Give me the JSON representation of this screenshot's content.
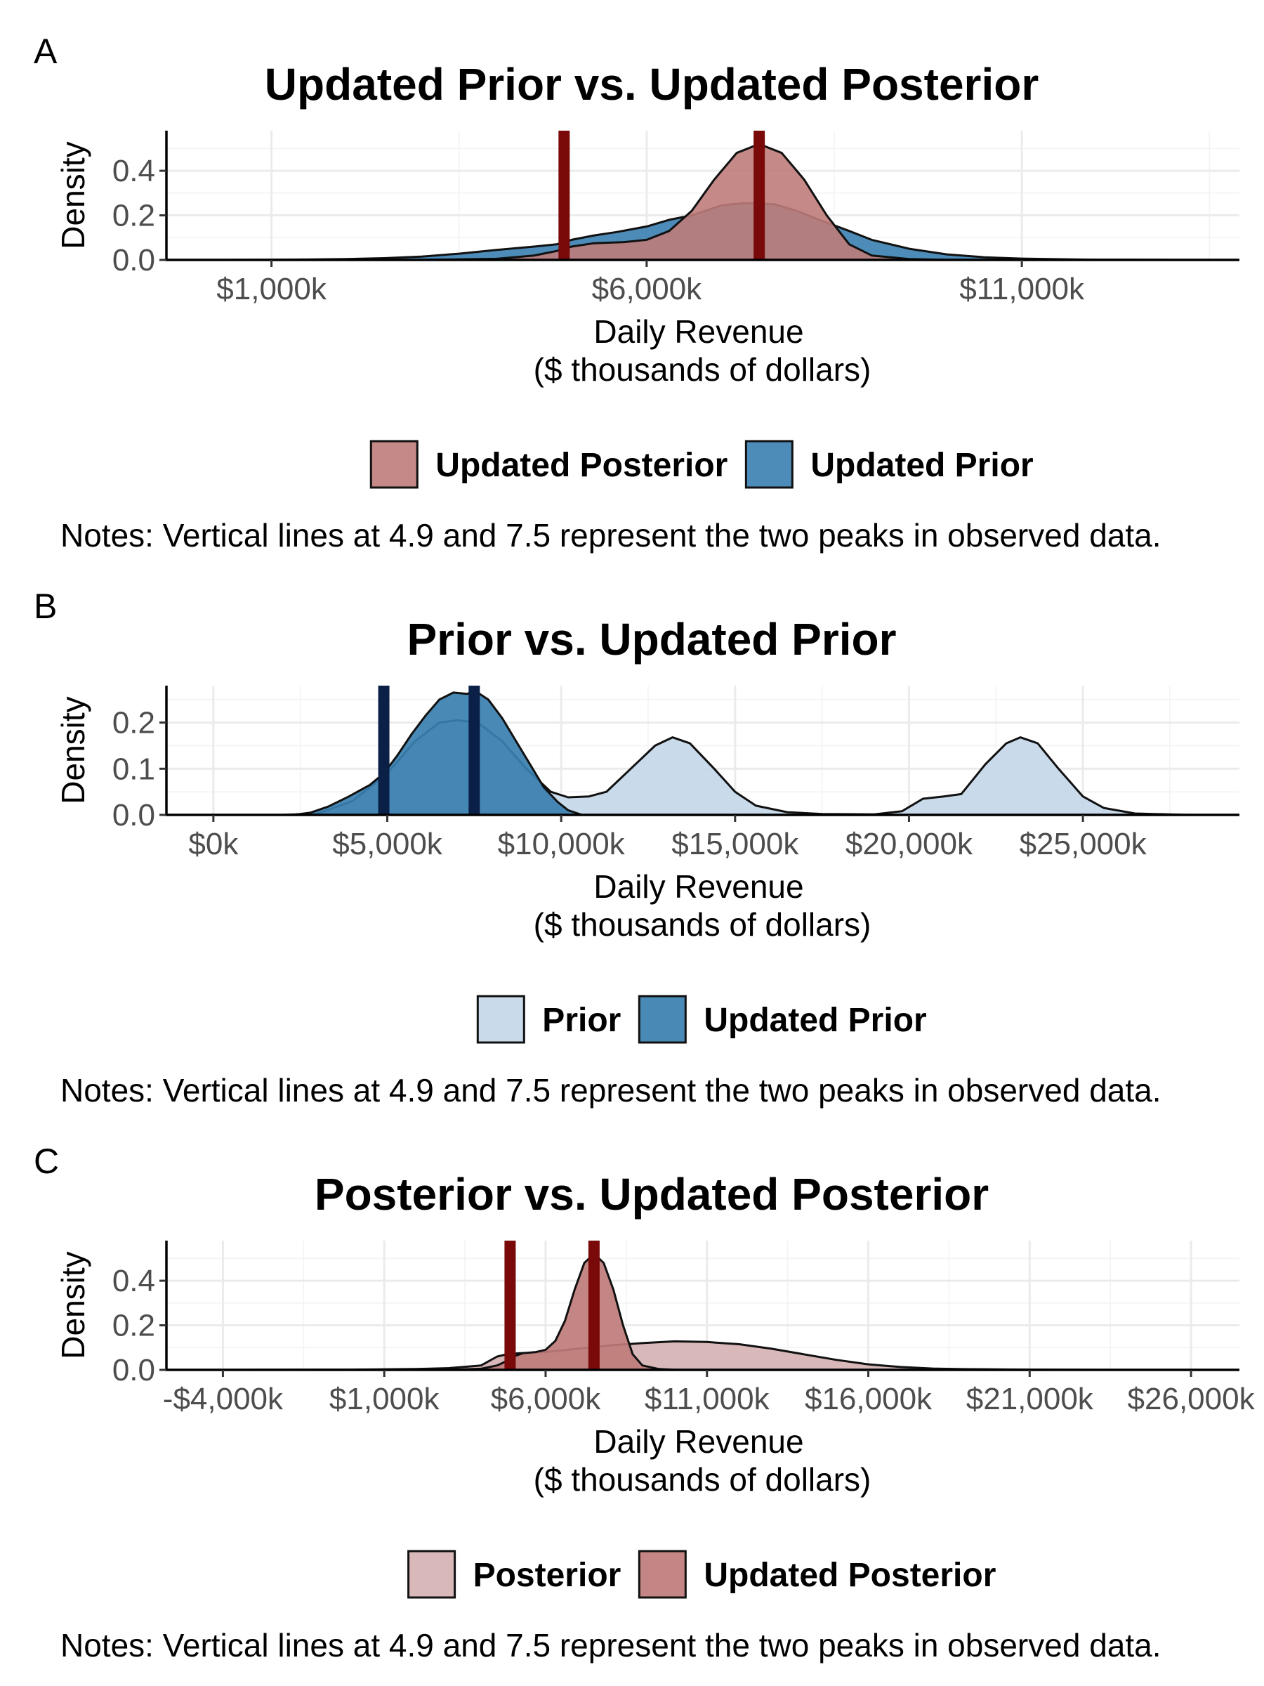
{
  "chart_data": [
    {
      "panel": "A",
      "type": "area",
      "title": "Updated Prior vs. Updated Posterior",
      "xlabel": "Daily Revenue",
      "xlabel2": "($ thousands of dollars)",
      "ylabel": "Density",
      "xlim": [
        -400,
        13900
      ],
      "ylim": [
        0,
        0.58
      ],
      "x_ticks": [
        1000,
        6000,
        11000
      ],
      "x_tick_labels": [
        "$1,000k",
        "$6,000k",
        "$11,000k"
      ],
      "y_ticks": [
        0.0,
        0.2,
        0.4
      ],
      "y_tick_labels": [
        "0.0",
        "0.2",
        "0.4"
      ],
      "grid": true,
      "legend_position": "bottom",
      "vlines": [
        4900,
        7500
      ],
      "vline_color": "#7a0a0a",
      "series": [
        {
          "name": "Updated Prior",
          "color": "#3a7fb0",
          "opacity": 0.9,
          "points": [
            [
              250,
              0
            ],
            [
              1000,
              0.001
            ],
            [
              1500,
              0.002
            ],
            [
              2000,
              0.004
            ],
            [
              2500,
              0.008
            ],
            [
              3000,
              0.015
            ],
            [
              3500,
              0.028
            ],
            [
              4000,
              0.045
            ],
            [
              4500,
              0.06
            ],
            [
              4800,
              0.07
            ],
            [
              5000,
              0.09
            ],
            [
              5300,
              0.11
            ],
            [
              5600,
              0.125
            ],
            [
              6000,
              0.15
            ],
            [
              6300,
              0.18
            ],
            [
              6600,
              0.2
            ],
            [
              7000,
              0.245
            ],
            [
              7300,
              0.255
            ],
            [
              7700,
              0.25
            ],
            [
              8000,
              0.22
            ],
            [
              8300,
              0.18
            ],
            [
              8700,
              0.13
            ],
            [
              9000,
              0.09
            ],
            [
              9500,
              0.05
            ],
            [
              10000,
              0.025
            ],
            [
              10500,
              0.012
            ],
            [
              11000,
              0.006
            ],
            [
              11500,
              0.003
            ],
            [
              12000,
              0.001
            ],
            [
              12500,
              0.0005
            ],
            [
              13100,
              0
            ]
          ]
        },
        {
          "name": "Updated Posterior",
          "color": "#bf7c7a",
          "opacity": 0.9,
          "points": [
            [
              3000,
              0
            ],
            [
              4000,
              0.005
            ],
            [
              4500,
              0.02
            ],
            [
              4800,
              0.04
            ],
            [
              5000,
              0.06
            ],
            [
              5300,
              0.075
            ],
            [
              5700,
              0.08
            ],
            [
              6000,
              0.09
            ],
            [
              6300,
              0.13
            ],
            [
              6600,
              0.22
            ],
            [
              6900,
              0.36
            ],
            [
              7200,
              0.48
            ],
            [
              7500,
              0.52
            ],
            [
              7800,
              0.48
            ],
            [
              8100,
              0.36
            ],
            [
              8400,
              0.2
            ],
            [
              8700,
              0.07
            ],
            [
              9000,
              0.02
            ],
            [
              9500,
              0.004
            ],
            [
              10000,
              0
            ]
          ]
        }
      ],
      "legend": [
        "Updated Posterior",
        "Updated Prior"
      ],
      "note": "Notes: Vertical lines at 4.9 and 7.5 represent the two peaks in observed data."
    },
    {
      "panel": "B",
      "type": "area",
      "title": "Prior vs. Updated Prior",
      "xlabel": "Daily Revenue",
      "xlabel2": "($ thousands of dollars)",
      "ylabel": "Density",
      "xlim": [
        -1350,
        29500
      ],
      "ylim": [
        0,
        0.28
      ],
      "x_ticks": [
        0,
        5000,
        10000,
        15000,
        20000,
        25000
      ],
      "x_tick_labels": [
        "$0k",
        "$5,000k",
        "$10,000k",
        "$15,000k",
        "$20,000k",
        "$25,000k"
      ],
      "y_ticks": [
        0.0,
        0.1,
        0.2
      ],
      "y_tick_labels": [
        "0.0",
        "0.1",
        "0.2"
      ],
      "grid": true,
      "legend_position": "bottom",
      "vlines": [
        4900,
        7500
      ],
      "vline_color": "#0b2046",
      "series": [
        {
          "name": "Prior",
          "color": "#c6d9ea",
          "opacity": 0.95,
          "points": [
            [
              600,
              0
            ],
            [
              2000,
              0
            ],
            [
              3000,
              0.003
            ],
            [
              4000,
              0.03
            ],
            [
              5000,
              0.09
            ],
            [
              5800,
              0.16
            ],
            [
              6500,
              0.2
            ],
            [
              7000,
              0.205
            ],
            [
              7600,
              0.2
            ],
            [
              8300,
              0.16
            ],
            [
              9000,
              0.1
            ],
            [
              9700,
              0.05
            ],
            [
              10200,
              0.038
            ],
            [
              10800,
              0.04
            ],
            [
              11300,
              0.05
            ],
            [
              12000,
              0.1
            ],
            [
              12700,
              0.15
            ],
            [
              13200,
              0.168
            ],
            [
              13700,
              0.155
            ],
            [
              14400,
              0.1
            ],
            [
              15000,
              0.05
            ],
            [
              15600,
              0.02
            ],
            [
              16500,
              0.006
            ],
            [
              17500,
              0.002
            ],
            [
              19000,
              0.001
            ],
            [
              19800,
              0.008
            ],
            [
              20400,
              0.035
            ],
            [
              21000,
              0.04
            ],
            [
              21500,
              0.045
            ],
            [
              22200,
              0.11
            ],
            [
              22800,
              0.155
            ],
            [
              23200,
              0.168
            ],
            [
              23700,
              0.155
            ],
            [
              24300,
              0.1
            ],
            [
              25000,
              0.04
            ],
            [
              25600,
              0.015
            ],
            [
              26500,
              0.003
            ],
            [
              28000,
              0
            ]
          ]
        },
        {
          "name": "Updated Prior",
          "color": "#3a7fb0",
          "opacity": 0.92,
          "points": [
            [
              2300,
              0
            ],
            [
              2800,
              0.005
            ],
            [
              3300,
              0.018
            ],
            [
              3900,
              0.04
            ],
            [
              4500,
              0.065
            ],
            [
              4900,
              0.09
            ],
            [
              5300,
              0.13
            ],
            [
              5700,
              0.175
            ],
            [
              6100,
              0.215
            ],
            [
              6500,
              0.25
            ],
            [
              6900,
              0.265
            ],
            [
              7300,
              0.262
            ],
            [
              7500,
              0.27
            ],
            [
              7900,
              0.25
            ],
            [
              8300,
              0.21
            ],
            [
              8700,
              0.16
            ],
            [
              9100,
              0.11
            ],
            [
              9500,
              0.06
            ],
            [
              9900,
              0.028
            ],
            [
              10200,
              0.01
            ],
            [
              10600,
              0
            ]
          ]
        }
      ],
      "legend": [
        "Prior",
        "Updated Prior"
      ],
      "note": "Notes: Vertical lines at 4.9 and 7.5 represent the two peaks in observed data."
    },
    {
      "panel": "C",
      "type": "area",
      "title": "Posterior vs. Updated Posterior",
      "xlabel": "Daily Revenue",
      "xlabel2": "($ thousands of dollars)",
      "ylabel": "Density",
      "xlim": [
        -5750,
        27500
      ],
      "ylim": [
        0,
        0.58
      ],
      "x_ticks": [
        -4000,
        1000,
        6000,
        11000,
        16000,
        21000,
        26000
      ],
      "x_tick_labels": [
        "-$4,000k",
        "$1,000k",
        "$6,000k",
        "$11,000k",
        "$16,000k",
        "$21,000k",
        "$26,000k"
      ],
      "y_ticks": [
        0.0,
        0.2,
        0.4
      ],
      "y_tick_labels": [
        "0.0",
        "0.2",
        "0.4"
      ],
      "grid": true,
      "legend_position": "bottom",
      "vlines": [
        4900,
        7500
      ],
      "vline_color": "#7a0a0a",
      "series": [
        {
          "name": "Posterior",
          "color": "#d6b4b4",
          "opacity": 0.95,
          "points": [
            [
              -4000,
              0
            ],
            [
              0,
              0.001
            ],
            [
              2000,
              0.004
            ],
            [
              3000,
              0.008
            ],
            [
              4000,
              0.02
            ],
            [
              4500,
              0.06
            ],
            [
              4800,
              0.07
            ],
            [
              5200,
              0.075
            ],
            [
              6000,
              0.08
            ],
            [
              7000,
              0.095
            ],
            [
              8000,
              0.11
            ],
            [
              9000,
              0.12
            ],
            [
              10000,
              0.128
            ],
            [
              11000,
              0.125
            ],
            [
              12000,
              0.115
            ],
            [
              13000,
              0.095
            ],
            [
              14000,
              0.07
            ],
            [
              15000,
              0.045
            ],
            [
              16000,
              0.025
            ],
            [
              17000,
              0.013
            ],
            [
              18000,
              0.006
            ],
            [
              19000,
              0.003
            ],
            [
              21000,
              0.001
            ],
            [
              23000,
              0
            ],
            [
              26000,
              0
            ]
          ]
        },
        {
          "name": "Updated Posterior",
          "color": "#bf7c7a",
          "opacity": 0.92,
          "points": [
            [
              3000,
              0
            ],
            [
              4000,
              0.005
            ],
            [
              4500,
              0.02
            ],
            [
              4800,
              0.04
            ],
            [
              5000,
              0.06
            ],
            [
              5300,
              0.075
            ],
            [
              5700,
              0.08
            ],
            [
              6000,
              0.09
            ],
            [
              6300,
              0.13
            ],
            [
              6600,
              0.22
            ],
            [
              6900,
              0.36
            ],
            [
              7200,
              0.48
            ],
            [
              7500,
              0.52
            ],
            [
              7800,
              0.48
            ],
            [
              8100,
              0.36
            ],
            [
              8400,
              0.2
            ],
            [
              8700,
              0.07
            ],
            [
              9000,
              0.02
            ],
            [
              9500,
              0.004
            ],
            [
              10000,
              0
            ]
          ]
        }
      ],
      "legend": [
        "Posterior",
        "Updated Posterior"
      ],
      "note": "Notes: Vertical lines at 4.9 and 7.5 represent the two peaks in observed data."
    }
  ]
}
